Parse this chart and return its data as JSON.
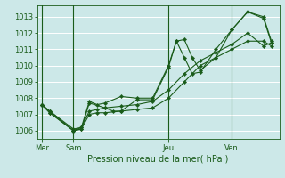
{
  "title": "",
  "xlabel": "Pression niveau de la mer( hPa )",
  "ylabel": "",
  "bg_color": "#cce8e8",
  "grid_color": "#ffffff",
  "line_color": "#1a5c1a",
  "ylim": [
    1005.5,
    1013.7
  ],
  "yticks": [
    1006,
    1007,
    1008,
    1009,
    1010,
    1011,
    1012,
    1013
  ],
  "day_labels": [
    "Mer",
    "Sam",
    "Jeu",
    "Ven"
  ],
  "day_positions": [
    0,
    2,
    8,
    12
  ],
  "vline_positions": [
    0,
    2,
    8,
    12
  ],
  "xlim": [
    -0.3,
    15.0
  ],
  "lines": [
    {
      "x": [
        0,
        0.5,
        2,
        2.5,
        3,
        4,
        4.5,
        5,
        6,
        7,
        8,
        8.5,
        9,
        9.5,
        10,
        11,
        12,
        13,
        14,
        14.5
      ],
      "y": [
        1007.6,
        1007.1,
        1006.0,
        1006.1,
        1007.7,
        1007.4,
        1007.2,
        1007.2,
        1007.9,
        1007.9,
        1009.9,
        1011.5,
        1011.6,
        1010.5,
        1009.7,
        1010.5,
        1012.2,
        1013.3,
        1013.0,
        1011.5
      ],
      "marker": "D"
    },
    {
      "x": [
        0,
        0.5,
        2,
        2.5,
        3,
        3.5,
        4,
        5,
        6,
        7,
        8,
        8.5,
        9,
        9.5,
        10,
        11,
        12,
        13,
        14,
        14.5
      ],
      "y": [
        1007.6,
        1007.1,
        1006.0,
        1006.2,
        1007.8,
        1007.6,
        1007.7,
        1008.1,
        1008.0,
        1008.0,
        1010.0,
        1011.5,
        1010.5,
        1009.5,
        1009.6,
        1011.0,
        1012.2,
        1013.3,
        1012.9,
        1011.4
      ],
      "marker": "D"
    },
    {
      "x": [
        0,
        0.5,
        2,
        2.5,
        3,
        3.5,
        4,
        5,
        6,
        7,
        8,
        9,
        10,
        11,
        12,
        13,
        14,
        14.5
      ],
      "y": [
        1007.6,
        1007.2,
        1006.0,
        1006.1,
        1007.0,
        1007.1,
        1007.1,
        1007.2,
        1007.3,
        1007.4,
        1008.0,
        1009.0,
        1010.0,
        1010.5,
        1011.0,
        1011.5,
        1011.5,
        1011.2
      ],
      "marker": "D"
    },
    {
      "x": [
        0,
        0.5,
        2,
        2.5,
        3,
        3.5,
        4,
        5,
        6,
        7,
        8,
        9,
        10,
        11,
        12,
        13,
        14,
        14.5
      ],
      "y": [
        1007.6,
        1007.2,
        1006.1,
        1006.2,
        1007.2,
        1007.3,
        1007.4,
        1007.5,
        1007.6,
        1007.8,
        1008.5,
        1009.5,
        1010.3,
        1010.8,
        1011.3,
        1012.0,
        1011.2,
        1011.4
      ],
      "marker": "D"
    }
  ],
  "xlabel_fontsize": 7,
  "ytick_fontsize": 6,
  "xtick_fontsize": 6,
  "linewidth": 0.8,
  "markersize": 2.2
}
